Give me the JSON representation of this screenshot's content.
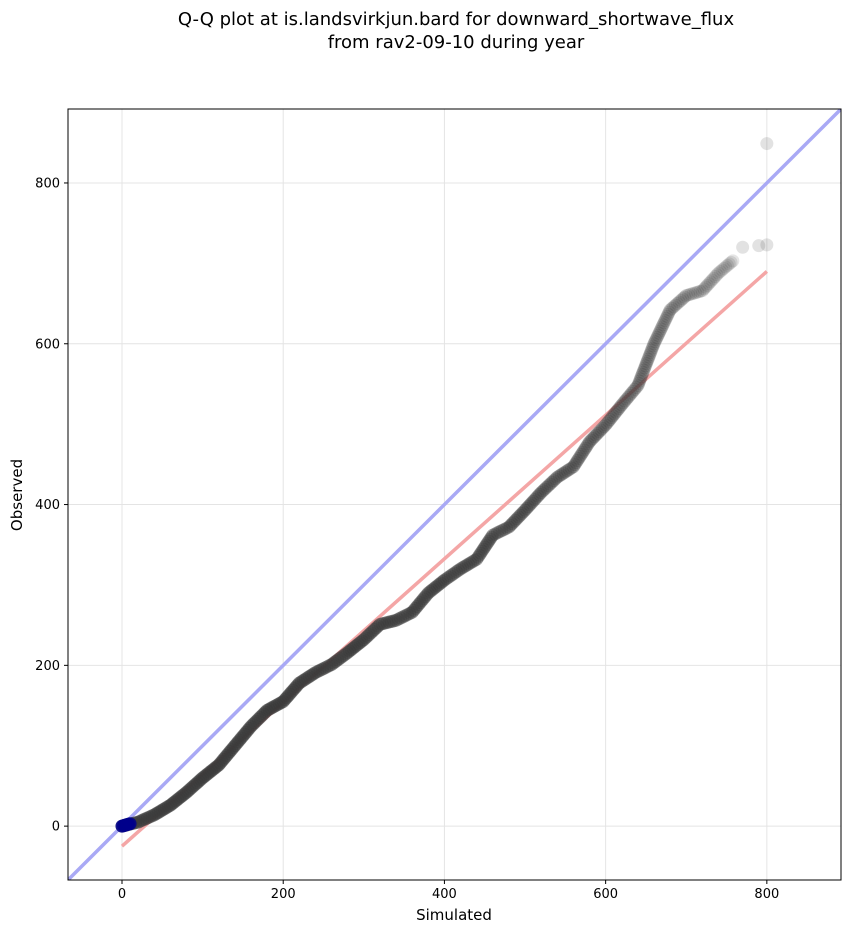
{
  "chart_data": {
    "type": "scatter",
    "title": "Q-Q plot at is.landsvirkjun.bard for downward_shortwave_flux",
    "subtitle": "from rav2-09-10 during year",
    "xlabel": "Simulated",
    "ylabel": "Observed",
    "xlim": [
      -67,
      892
    ],
    "ylim": [
      -67,
      892
    ],
    "xticks": [
      0,
      200,
      400,
      600,
      800
    ],
    "yticks": [
      0,
      200,
      400,
      600,
      800
    ],
    "xtick_labels": [
      "0",
      "200",
      "400",
      "600",
      "800"
    ],
    "ytick_labels": [
      "0",
      "200",
      "400",
      "600",
      "800"
    ],
    "grid": true,
    "reference_line": {
      "name": "1:1 line",
      "color": "#a9a9f5",
      "x": [
        -67,
        892
      ],
      "y": [
        -67,
        892
      ]
    },
    "fit_line": {
      "name": "regression fit",
      "color": "#f4a6a6",
      "x": [
        0,
        800
      ],
      "y": [
        -25,
        690
      ]
    },
    "marker_color": "#3a3a3a",
    "anchor_color": "#00008b",
    "curve": [
      [
        0,
        0
      ],
      [
        20,
        5
      ],
      [
        40,
        14
      ],
      [
        60,
        26
      ],
      [
        80,
        42
      ],
      [
        100,
        60
      ],
      [
        120,
        76
      ],
      [
        140,
        100
      ],
      [
        160,
        124
      ],
      [
        180,
        144
      ],
      [
        200,
        155
      ],
      [
        220,
        178
      ],
      [
        240,
        191
      ],
      [
        260,
        201
      ],
      [
        280,
        216
      ],
      [
        300,
        232
      ],
      [
        320,
        251
      ],
      [
        340,
        256
      ],
      [
        360,
        266
      ],
      [
        380,
        290
      ],
      [
        400,
        306
      ],
      [
        420,
        320
      ],
      [
        440,
        332
      ],
      [
        460,
        362
      ],
      [
        480,
        372
      ],
      [
        500,
        393
      ],
      [
        520,
        415
      ],
      [
        540,
        434
      ],
      [
        560,
        447
      ],
      [
        580,
        478
      ],
      [
        600,
        499
      ],
      [
        620,
        524
      ],
      [
        640,
        548
      ],
      [
        660,
        600
      ],
      [
        680,
        642
      ],
      [
        700,
        660
      ],
      [
        720,
        666
      ],
      [
        740,
        688
      ],
      [
        760,
        705
      ]
    ],
    "outliers": [
      [
        770,
        720
      ],
      [
        790,
        722
      ],
      [
        800,
        723
      ],
      [
        800,
        849
      ]
    ]
  }
}
